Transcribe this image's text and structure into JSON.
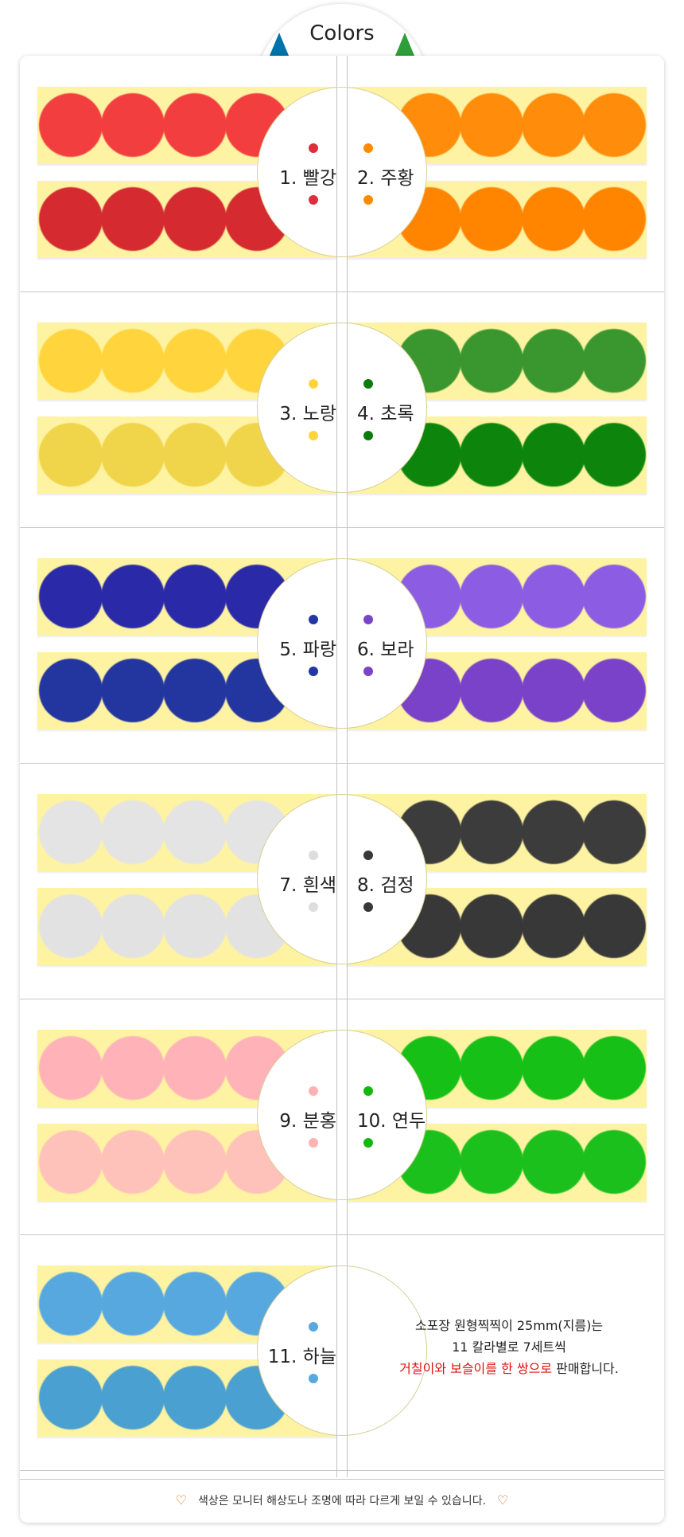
{
  "header": {
    "title": "Colors",
    "accent_left": "#0073a8",
    "accent_right": "#2e9e3a"
  },
  "strip_color": "#fdf3a3",
  "rows": [
    {
      "left": {
        "label": "1. 빨강",
        "top": "#f23e3e",
        "bottom": "#d42a30",
        "dot": "#d9303c"
      },
      "right": {
        "label": "2. 주황",
        "top": "#ff8c0a",
        "bottom": "#ff8400",
        "dot": "#ff8a00"
      }
    },
    {
      "left": {
        "label": "3. 노랑",
        "top": "#ffd43c",
        "bottom": "#f0d44a",
        "dot": "#ffd43c"
      },
      "right": {
        "label": "4. 초록",
        "top": "#3a962e",
        "bottom": "#0d850d",
        "dot": "#0d7a0d"
      }
    },
    {
      "left": {
        "label": "5. 파랑",
        "top": "#2a2aa8",
        "bottom": "#2336a0",
        "dot": "#2336a8"
      },
      "right": {
        "label": "6. 보라",
        "top": "#8c5ce2",
        "bottom": "#7a42c8",
        "dot": "#7a44c8"
      }
    },
    {
      "left": {
        "label": "7. 흰색",
        "top": "#e4e4e4",
        "bottom": "#e2e2e2",
        "dot": "#dddddd"
      },
      "right": {
        "label": "8. 검정",
        "top": "#3c3c3c",
        "bottom": "#383838",
        "dot": "#383838"
      }
    },
    {
      "left": {
        "label": "9. 분홍",
        "top": "#ffb2b8",
        "bottom": "#ffc2ba",
        "dot": "#ffb2b2"
      },
      "right": {
        "label": "10. 연두",
        "top": "#16c016",
        "bottom": "#1cc01c",
        "dot": "#10b810"
      }
    },
    {
      "left": {
        "label": "11. 하늘",
        "top": "#58a8e0",
        "bottom": "#4aa0d0",
        "dot": "#58a8e0"
      },
      "right": null
    }
  ],
  "info": {
    "line1": "소포장 원형찍찍이 25mm(지름)는",
    "line2": "11 칼라별로 7세트씩",
    "line3_red": "거칠이와 보슬이를 한 쌍으로",
    "line3_rest": " 판매합니다."
  },
  "footer": {
    "note": "색상은 모니터 해상도나 조명에 따라 다르게 보일 수 있습니다.",
    "icon": "heart-outline-icon",
    "icon_color": "#d2691e"
  }
}
